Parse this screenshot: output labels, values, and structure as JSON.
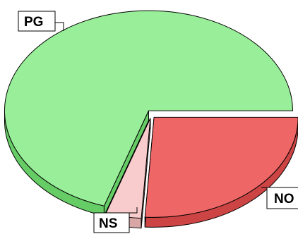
{
  "chart_data": {
    "type": "pie",
    "style": "3d-exploded",
    "title": "",
    "labels": [
      "NO",
      "NS",
      "PG"
    ],
    "values": [
      26,
      4,
      70
    ],
    "colors": {
      "NO": "#ee6666",
      "NS": "#f8cccc",
      "PG": "#99ee99"
    },
    "side_colors": {
      "NO": "#cc4444",
      "NS": "#d9a6a6",
      "PG": "#66cc66"
    },
    "legend": "none"
  }
}
